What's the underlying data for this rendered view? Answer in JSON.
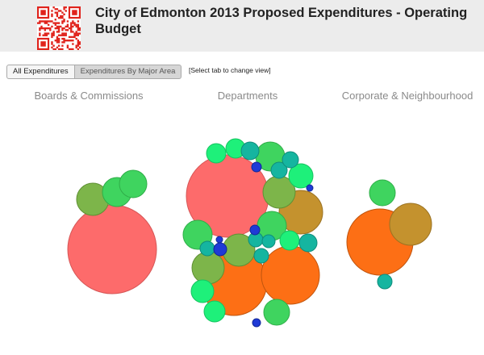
{
  "header": {
    "title": "City of Edmonton 2013 Proposed Expenditures - Operating Budget"
  },
  "tabs": [
    {
      "label": "All Expenditures",
      "active": false
    },
    {
      "label": "Expenditures By Major Area",
      "active": true
    }
  ],
  "hint": "[Select tab to change view]",
  "areas": [
    {
      "label": "Boards & Commissions"
    },
    {
      "label": "Departments"
    },
    {
      "label": "Corporate & Neighbourhood"
    }
  ],
  "colors": {
    "red": "#fd6b6b",
    "orange": "#fd6f15",
    "olive": "#7db54a",
    "gold": "#c4922e",
    "green": "#3fd45f",
    "light_green": "#1ef07a",
    "teal": "#15b5a0",
    "blue": "#1f3ad6",
    "qr": "#e0231c"
  }
}
